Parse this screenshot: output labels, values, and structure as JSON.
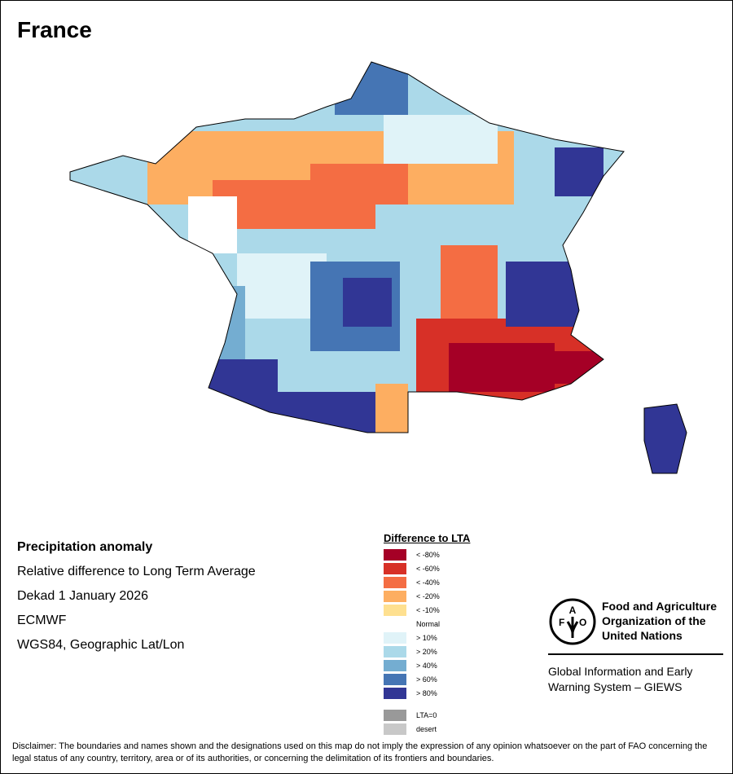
{
  "title": "France",
  "info": {
    "heading": "Precipitation anomaly",
    "line1": "Relative difference to Long Term Average",
    "line2": "Dekad 1 January 2026",
    "line3": "ECMWF",
    "line4": "WGS84, Geographic Lat/Lon"
  },
  "legend": {
    "title": "Difference to LTA",
    "items": [
      {
        "label": "< -80%",
        "color": "#a50026"
      },
      {
        "label": "< -60%",
        "color": "#d73027"
      },
      {
        "label": "< -40%",
        "color": "#f46d43"
      },
      {
        "label": "< -20%",
        "color": "#fdae61"
      },
      {
        "label": "< -10%",
        "color": "#fee090"
      },
      {
        "label": "Normal",
        "color": "#ffffff"
      },
      {
        "label": "> 10%",
        "color": "#e0f3f8"
      },
      {
        "label": "> 20%",
        "color": "#abd9e9"
      },
      {
        "label": "> 40%",
        "color": "#74add1"
      },
      {
        "label": "> 60%",
        "color": "#4575b4"
      },
      {
        "label": "> 80%",
        "color": "#313695"
      }
    ],
    "extra": [
      {
        "label": "LTA=0",
        "color": "#999999"
      },
      {
        "label": "desert",
        "color": "#c8c8c8"
      }
    ]
  },
  "fao": {
    "logo_text": "FAO FIAT PANIS",
    "name": "Food and Agriculture Organization of the United Nations",
    "giews": "Global Information and Early Warning System – GIEWS"
  },
  "disclaimer": "Disclaimer: The boundaries and names shown and the designations used on this map do not imply the expression of any opinion whatsoever on the part of FAO concerning the legal status of any country, territory, area or of its authorities, or concerning the delimitation of its frontiers and boundaries."
}
